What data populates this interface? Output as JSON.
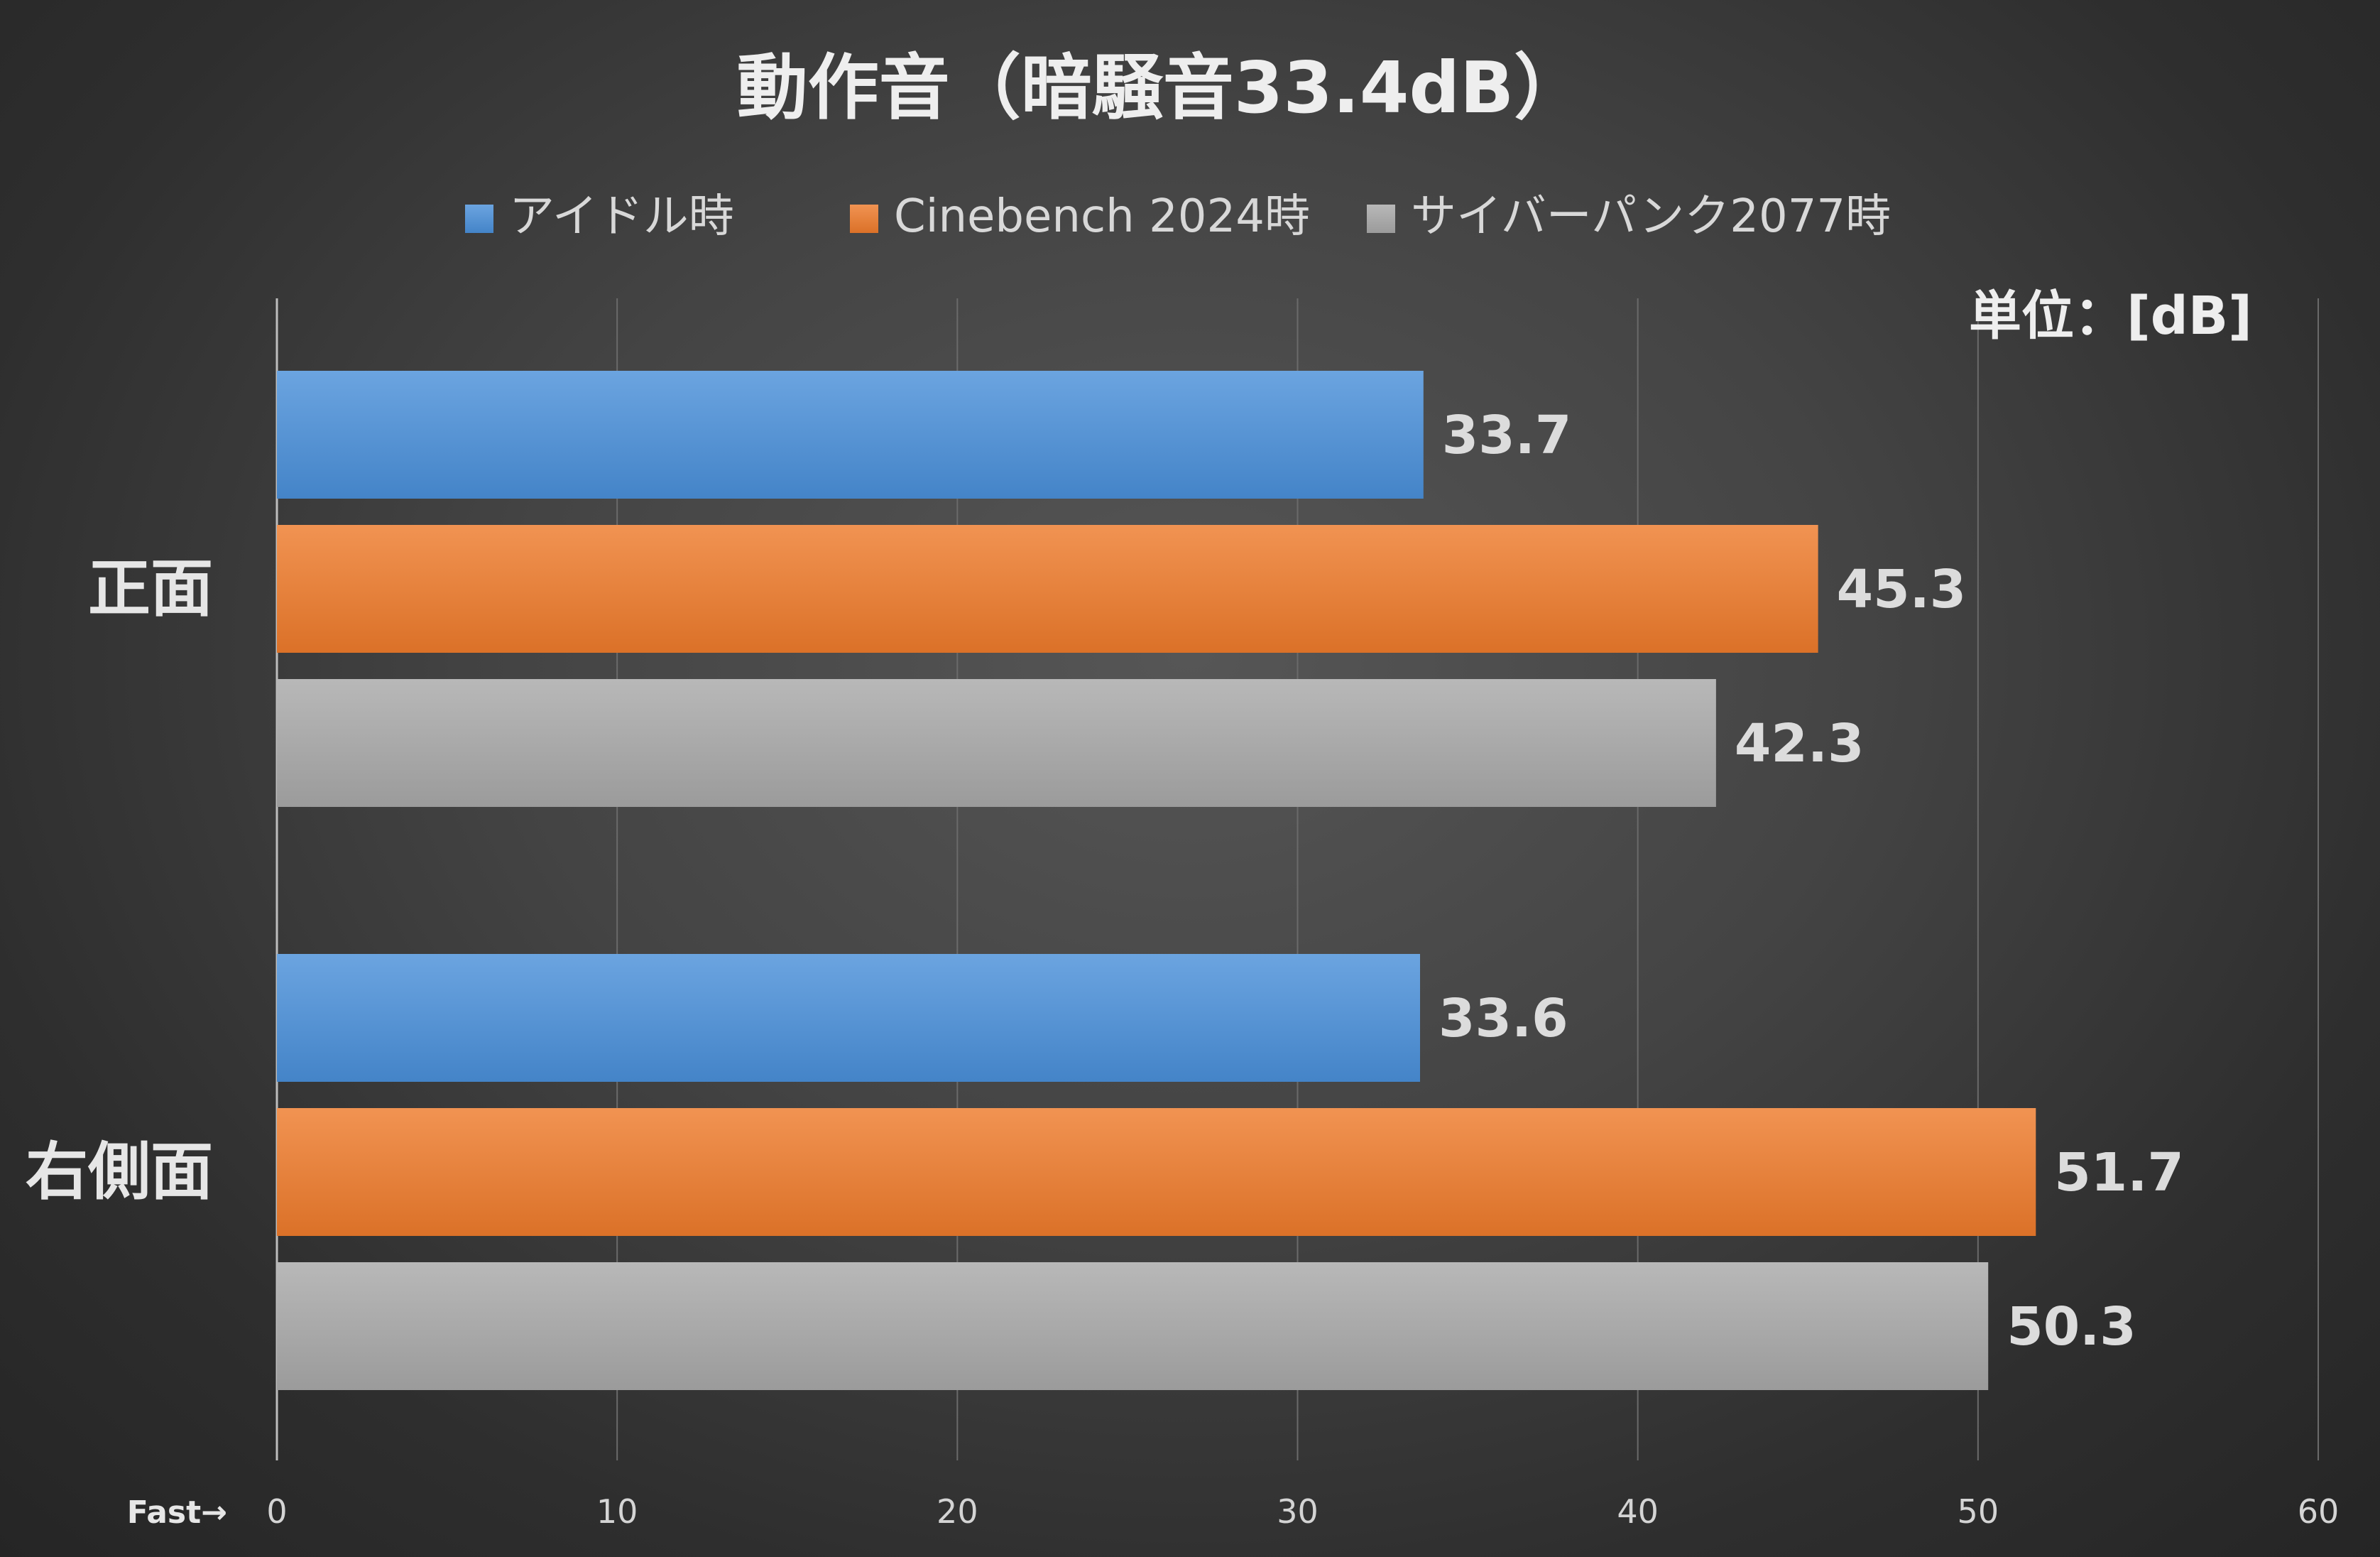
{
  "chart_data": {
    "type": "bar",
    "orientation": "horizontal",
    "title": "動作音（暗騒音33.4dB）",
    "unit_label": "単位：[dB]",
    "axis_note": "Fast→",
    "categories": [
      "正面",
      "右側面"
    ],
    "series": [
      {
        "name": "アイドル時",
        "values": [
          33.7,
          33.6
        ],
        "color": "#4a90d9"
      },
      {
        "name": "Cinebench 2024時",
        "values": [
          45.3,
          51.7
        ],
        "color": "#ee7b2c"
      },
      {
        "name": "サイバーパンク2077時",
        "values": [
          42.3,
          50.3
        ],
        "color": "#a9a9a9"
      }
    ],
    "data_labels": [
      [
        "33.7",
        "33.6"
      ],
      [
        "45.3",
        "51.7"
      ],
      [
        "42.3",
        "50.3"
      ]
    ],
    "xlim": [
      0,
      60
    ],
    "x_ticks": [
      0,
      10,
      20,
      30,
      40,
      50,
      60
    ],
    "x_tick_labels": [
      "0",
      "10",
      "20",
      "30",
      "40",
      "50",
      "60"
    ],
    "grid": true,
    "legend_position": "top"
  }
}
